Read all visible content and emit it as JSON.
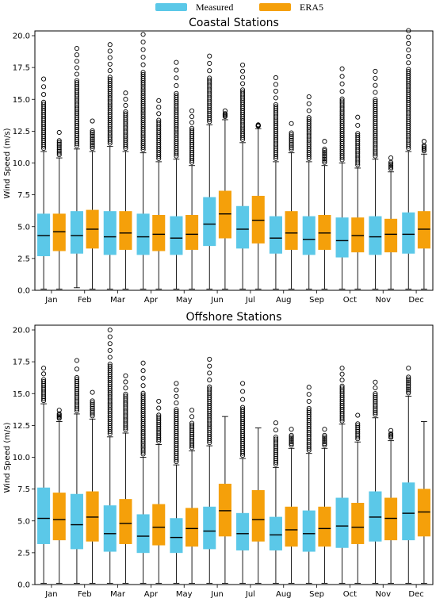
{
  "legend": {
    "placement": "top-center",
    "entries": [
      {
        "label": "Measured",
        "color": "#5bc8e8"
      },
      {
        "label": "ERA5",
        "color": "#f5a00a"
      }
    ]
  },
  "chart_data": [
    {
      "type": "box",
      "title": "Coastal Stations",
      "ylabel": "Wind Speed (m/s)",
      "ylim": [
        0,
        20
      ],
      "yticks": [
        "0.0",
        "2.5",
        "5.0",
        "7.5",
        "10.0",
        "12.5",
        "15.0",
        "17.5",
        "20.0"
      ],
      "categories": [
        "Jan",
        "Feb",
        "Mar",
        "Apr",
        "May",
        "Jun",
        "Jul",
        "Aug",
        "Sep",
        "Oct",
        "Nov",
        "Dec"
      ],
      "series": [
        {
          "name": "Measured",
          "color": "#5bc8e8",
          "boxes": [
            {
              "min": 0.1,
              "q1": 2.7,
              "median": 4.3,
              "q3": 6.0,
              "whisker_high": 10.9,
              "outlier_max": 16.6
            },
            {
              "min": 0.2,
              "q1": 2.9,
              "median": 4.3,
              "q3": 6.2,
              "whisker_high": 11.1,
              "outlier_max": 19.0
            },
            {
              "min": 0.1,
              "q1": 2.8,
              "median": 4.2,
              "q3": 6.2,
              "whisker_high": 11.3,
              "outlier_max": 19.3
            },
            {
              "min": 0.1,
              "q1": 2.8,
              "median": 4.2,
              "q3": 6.0,
              "whisker_high": 10.8,
              "outlier_max": 20.1
            },
            {
              "min": 0.1,
              "q1": 2.8,
              "median": 4.1,
              "q3": 5.8,
              "whisker_high": 10.3,
              "outlier_max": 17.9
            },
            {
              "min": 0.1,
              "q1": 3.5,
              "median": 5.2,
              "q3": 7.3,
              "whisker_high": 13.0,
              "outlier_max": 18.4
            },
            {
              "min": 0.1,
              "q1": 3.3,
              "median": 4.8,
              "q3": 6.6,
              "whisker_high": 11.6,
              "outlier_max": 17.7
            },
            {
              "min": 0.1,
              "q1": 2.9,
              "median": 4.1,
              "q3": 5.8,
              "whisker_high": 10.1,
              "outlier_max": 16.7
            },
            {
              "min": 0.1,
              "q1": 2.8,
              "median": 4.0,
              "q3": 5.8,
              "whisker_high": 10.1,
              "outlier_max": 15.2
            },
            {
              "min": 0.1,
              "q1": 2.6,
              "median": 3.9,
              "q3": 5.7,
              "whisker_high": 10.0,
              "outlier_max": 17.4
            },
            {
              "min": 0.1,
              "q1": 2.8,
              "median": 4.2,
              "q3": 5.8,
              "whisker_high": 10.3,
              "outlier_max": 17.2
            },
            {
              "min": 0.1,
              "q1": 2.9,
              "median": 4.4,
              "q3": 6.1,
              "whisker_high": 10.9,
              "outlier_max": 20.4
            }
          ]
        },
        {
          "name": "ERA5",
          "color": "#f5a00a",
          "boxes": [
            {
              "min": 0.1,
              "q1": 3.1,
              "median": 4.6,
              "q3": 6.0,
              "whisker_high": 10.4,
              "outlier_max": 12.4
            },
            {
              "min": 0.1,
              "q1": 3.3,
              "median": 4.8,
              "q3": 6.3,
              "whisker_high": 10.9,
              "outlier_max": 13.3
            },
            {
              "min": 0.1,
              "q1": 3.2,
              "median": 4.5,
              "q3": 6.2,
              "whisker_high": 10.9,
              "outlier_max": 15.5
            },
            {
              "min": 0.1,
              "q1": 3.1,
              "median": 4.4,
              "q3": 5.9,
              "whisker_high": 10.1,
              "outlier_max": 14.9
            },
            {
              "min": 0.1,
              "q1": 3.2,
              "median": 4.4,
              "q3": 5.9,
              "whisker_high": 9.8,
              "outlier_max": 14.1
            },
            {
              "min": 0.1,
              "q1": 4.1,
              "median": 6.0,
              "q3": 7.8,
              "whisker_high": 13.4,
              "outlier_max": 14.1
            },
            {
              "min": 0.1,
              "q1": 3.7,
              "median": 5.5,
              "q3": 7.4,
              "whisker_high": 12.7,
              "outlier_max": 13.0
            },
            {
              "min": 0.1,
              "q1": 3.2,
              "median": 4.5,
              "q3": 6.2,
              "whisker_high": 10.8,
              "outlier_max": 13.1
            },
            {
              "min": 0.1,
              "q1": 3.2,
              "median": 4.5,
              "q3": 5.9,
              "whisker_high": 9.8,
              "outlier_max": 11.7
            },
            {
              "min": 0.1,
              "q1": 3.0,
              "median": 4.3,
              "q3": 5.7,
              "whisker_high": 9.6,
              "outlier_max": 13.6
            },
            {
              "min": 0.1,
              "q1": 3.0,
              "median": 4.4,
              "q3": 5.6,
              "whisker_high": 9.3,
              "outlier_max": 10.4
            },
            {
              "min": 0.1,
              "q1": 3.3,
              "median": 4.8,
              "q3": 6.2,
              "whisker_high": 10.7,
              "outlier_max": 11.7
            }
          ]
        }
      ]
    },
    {
      "type": "box",
      "title": "Offshore Stations",
      "ylabel": "Wind Speed (m/s)",
      "ylim": [
        0,
        20
      ],
      "yticks": [
        "0.0",
        "2.5",
        "5.0",
        "7.5",
        "10.0",
        "12.5",
        "15.0",
        "17.5",
        "20.0"
      ],
      "categories": [
        "Jan",
        "Feb",
        "Mar",
        "Apr",
        "May",
        "Jun",
        "Jul",
        "Aug",
        "Sep",
        "Oct",
        "Nov",
        "Dec"
      ],
      "series": [
        {
          "name": "Measured",
          "color": "#5bc8e8",
          "boxes": [
            {
              "min": 0.1,
              "q1": 3.2,
              "median": 5.2,
              "q3": 7.6,
              "whisker_high": 14.2,
              "outlier_max": 17.0
            },
            {
              "min": 0.1,
              "q1": 2.8,
              "median": 4.7,
              "q3": 7.1,
              "whisker_high": 13.4,
              "outlier_max": 17.6
            },
            {
              "min": 0.1,
              "q1": 2.6,
              "median": 4.0,
              "q3": 6.2,
              "whisker_high": 11.6,
              "outlier_max": 20.0
            },
            {
              "min": 0.1,
              "q1": 2.5,
              "median": 3.8,
              "q3": 5.5,
              "whisker_high": 10.0,
              "outlier_max": 17.4
            },
            {
              "min": 0.1,
              "q1": 2.5,
              "median": 3.7,
              "q3": 5.2,
              "whisker_high": 9.4,
              "outlier_max": 15.8
            },
            {
              "min": 0.1,
              "q1": 2.8,
              "median": 4.2,
              "q3": 6.1,
              "whisker_high": 10.9,
              "outlier_max": 17.7
            },
            {
              "min": 0.1,
              "q1": 2.7,
              "median": 4.0,
              "q3": 5.6,
              "whisker_high": 9.9,
              "outlier_max": 15.8
            },
            {
              "min": 0.1,
              "q1": 2.7,
              "median": 3.9,
              "q3": 5.3,
              "whisker_high": 9.2,
              "outlier_max": 12.7
            },
            {
              "min": 0.1,
              "q1": 2.6,
              "median": 4.0,
              "q3": 5.8,
              "whisker_high": 10.3,
              "outlier_max": 15.5
            },
            {
              "min": 0.1,
              "q1": 2.9,
              "median": 4.6,
              "q3": 6.8,
              "whisker_high": 12.6,
              "outlier_max": 17.0
            },
            {
              "min": 0.1,
              "q1": 3.4,
              "median": 5.3,
              "q3": 7.3,
              "whisker_high": 13.1,
              "outlier_max": 15.9
            },
            {
              "min": 0.1,
              "q1": 3.5,
              "median": 5.6,
              "q3": 8.0,
              "whisker_high": 14.8,
              "outlier_max": 17.0
            }
          ]
        },
        {
          "name": "ERA5",
          "color": "#f5a00a",
          "boxes": [
            {
              "min": 0.1,
              "q1": 3.5,
              "median": 5.1,
              "q3": 7.2,
              "whisker_high": 12.8,
              "outlier_max": 13.7
            },
            {
              "min": 0.1,
              "q1": 3.4,
              "median": 5.3,
              "q3": 7.3,
              "whisker_high": 13.0,
              "outlier_max": 15.1
            },
            {
              "min": 0.1,
              "q1": 3.2,
              "median": 4.8,
              "q3": 6.7,
              "whisker_high": 11.9,
              "outlier_max": 16.4
            },
            {
              "min": 0.1,
              "q1": 3.1,
              "median": 4.5,
              "q3": 6.3,
              "whisker_high": 11.0,
              "outlier_max": 14.4
            },
            {
              "min": 0.1,
              "q1": 3.0,
              "median": 4.4,
              "q3": 6.0,
              "whisker_high": 10.5,
              "outlier_max": 13.7
            },
            {
              "min": 0.1,
              "q1": 3.8,
              "median": 5.8,
              "q3": 7.9,
              "whisker_high": 13.2,
              "outlier_max": 13.2
            },
            {
              "min": 0.1,
              "q1": 3.4,
              "median": 5.1,
              "q3": 7.4,
              "whisker_high": 12.3,
              "outlier_max": 12.3
            },
            {
              "min": 0.1,
              "q1": 3.0,
              "median": 4.3,
              "q3": 6.1,
              "whisker_high": 10.7,
              "outlier_max": 12.2
            },
            {
              "min": 0.1,
              "q1": 3.0,
              "median": 4.4,
              "q3": 6.1,
              "whisker_high": 10.7,
              "outlier_max": 12.2
            },
            {
              "min": 0.1,
              "q1": 3.2,
              "median": 4.5,
              "q3": 6.4,
              "whisker_high": 11.2,
              "outlier_max": 13.3
            },
            {
              "min": 0.1,
              "q1": 3.5,
              "median": 5.2,
              "q3": 6.8,
              "whisker_high": 11.3,
              "outlier_max": 12.1
            },
            {
              "min": 0.1,
              "q1": 3.8,
              "median": 5.7,
              "q3": 7.5,
              "whisker_high": 12.8,
              "outlier_max": 12.8
            }
          ]
        }
      ]
    }
  ]
}
